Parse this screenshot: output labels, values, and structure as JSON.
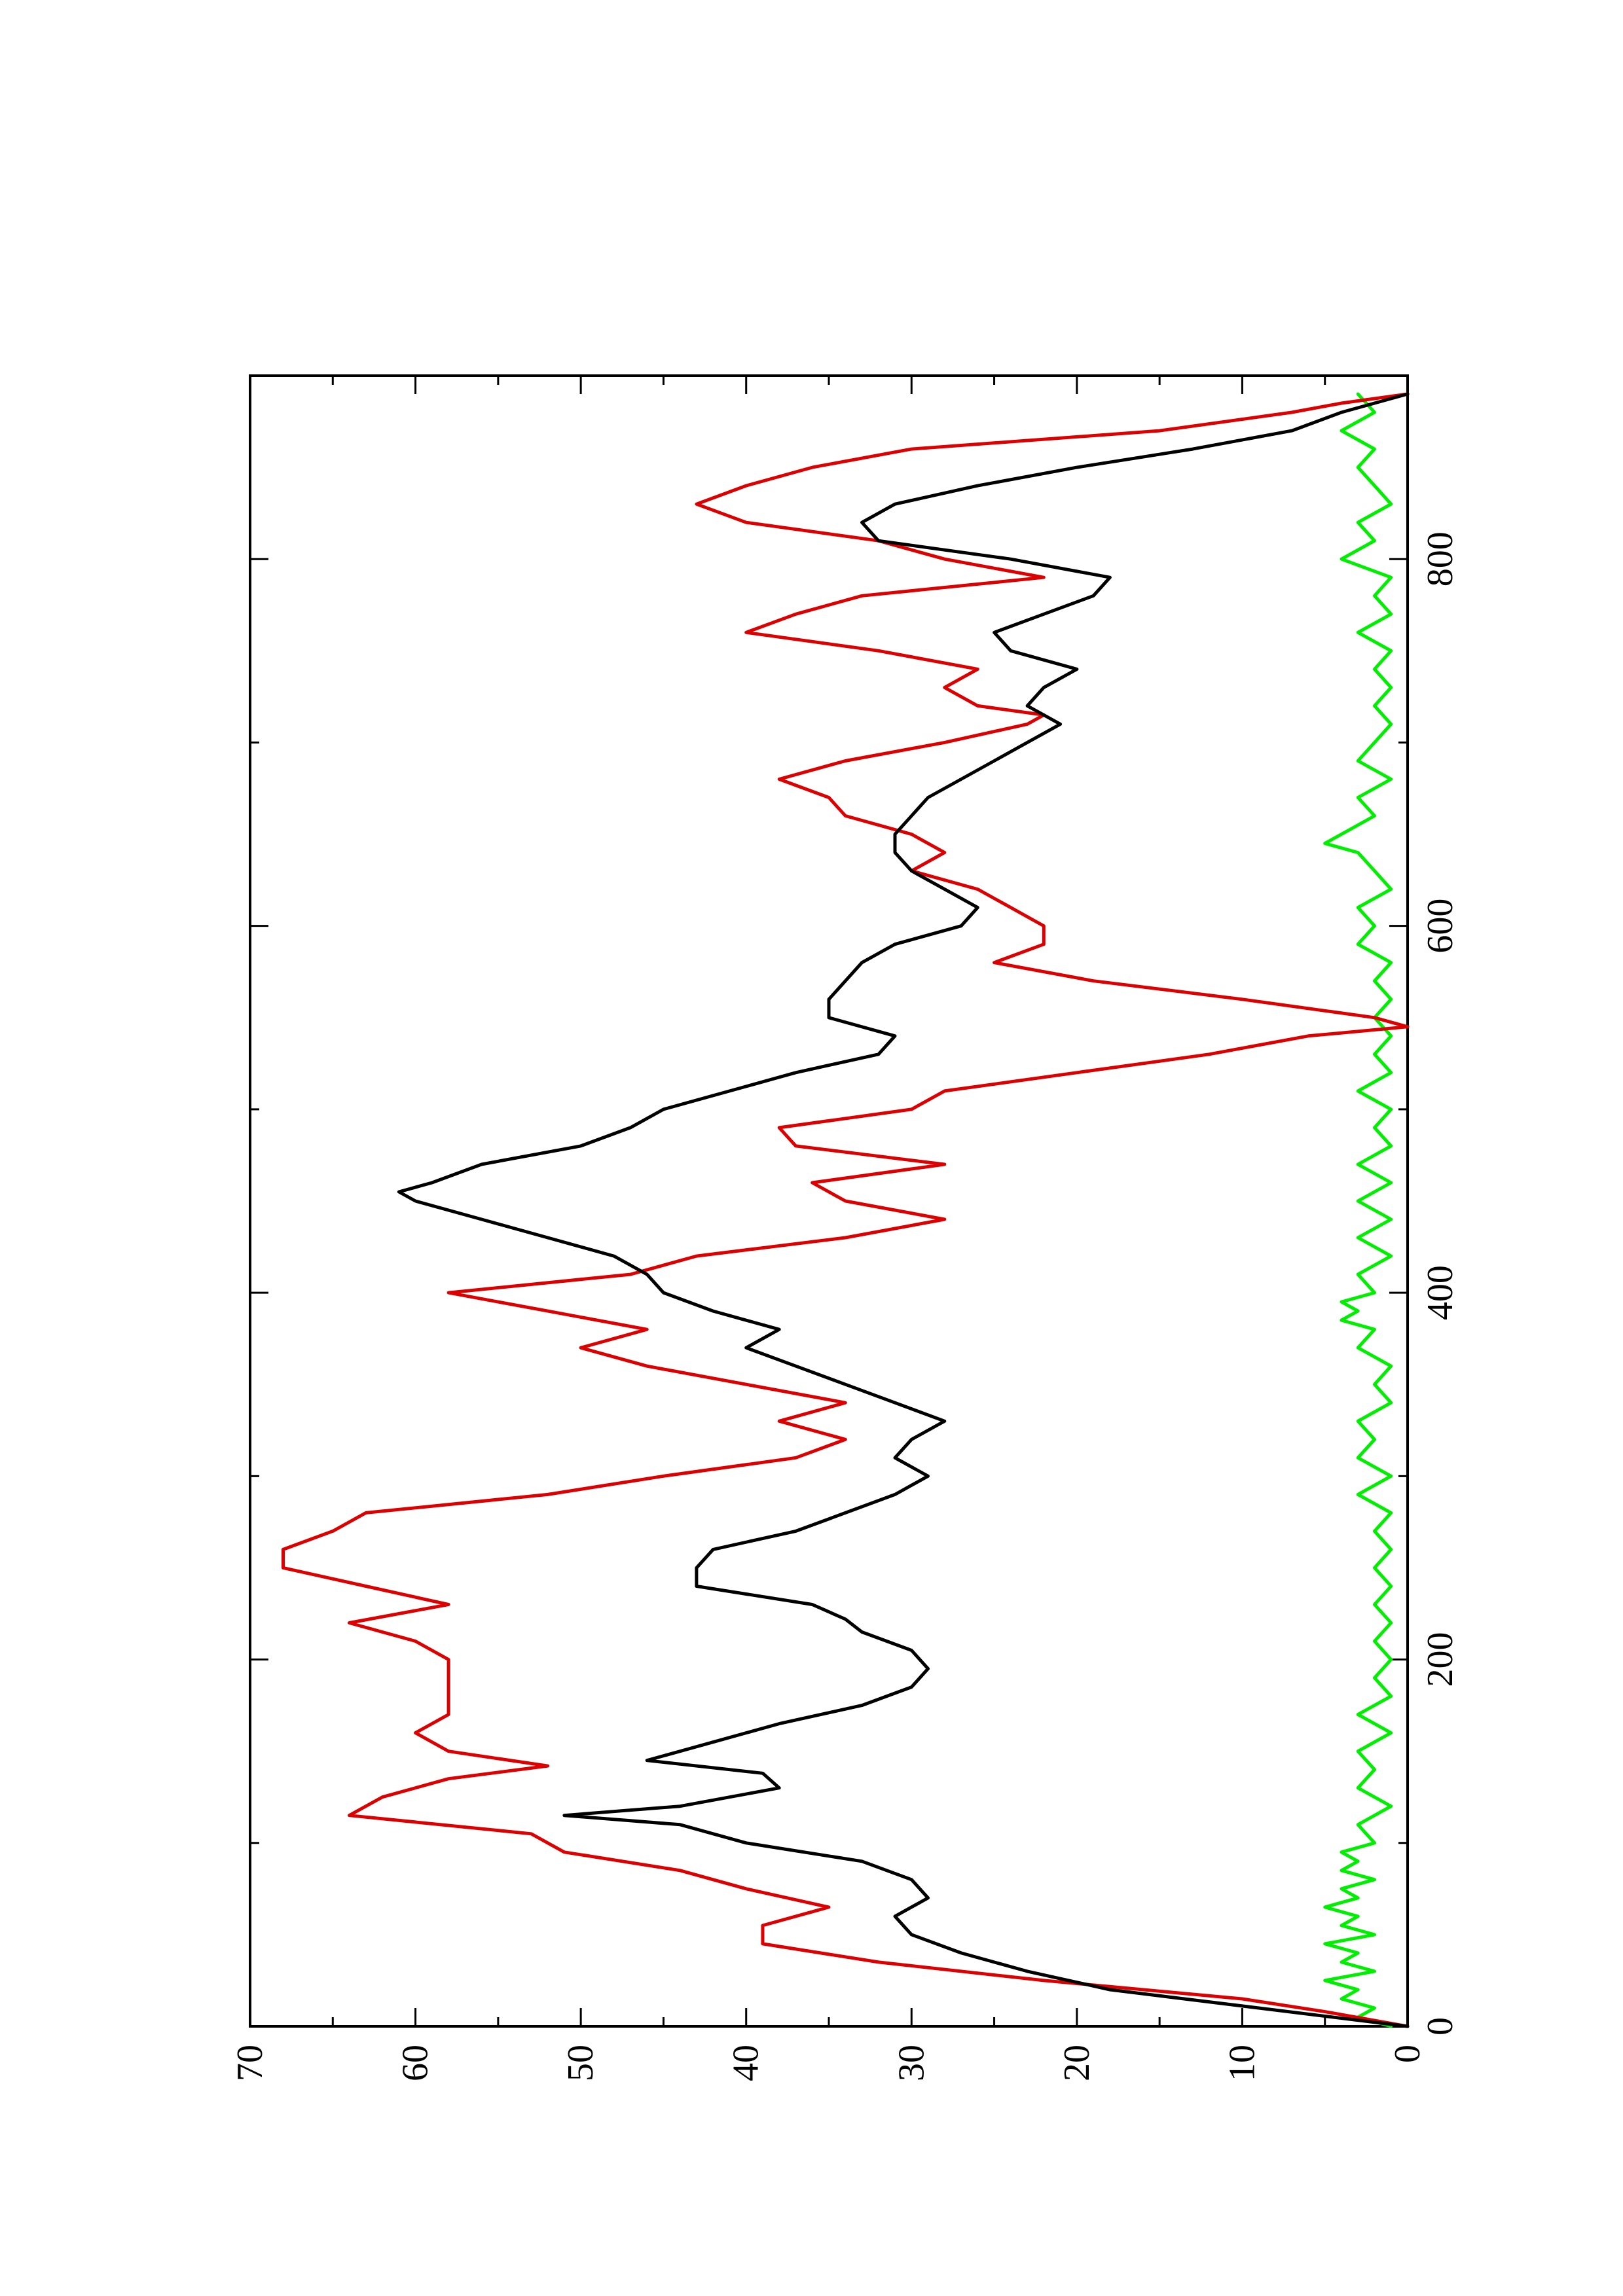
{
  "chart_data": {
    "type": "line",
    "orientation": "rotated-90-ccw",
    "title": "",
    "xlabel": "",
    "ylabel": "",
    "xlim": [
      0,
      900
    ],
    "ylim": [
      0,
      70
    ],
    "grid": false,
    "x_ticks": [
      0,
      200,
      400,
      600,
      800
    ],
    "x_minor_ticks": [
      100,
      300,
      500,
      700
    ],
    "x_tick_labels": [
      "0",
      "200",
      "400",
      "600",
      "800"
    ],
    "y_ticks": [
      0,
      10,
      20,
      30,
      40,
      50,
      60,
      70
    ],
    "y_minor_ticks": [
      5,
      15,
      25,
      35,
      45,
      55,
      65
    ],
    "y_tick_labels": [
      "0",
      "10",
      "20",
      "30",
      "40",
      "50",
      "60",
      "70"
    ],
    "series": [
      {
        "color": "#000000",
        "x": [
          0,
          10,
          20,
          30,
          40,
          50,
          60,
          70,
          80,
          90,
          100,
          110,
          115,
          120,
          130,
          138,
          145,
          155,
          165,
          175,
          185,
          195,
          205,
          215,
          222,
          230,
          240,
          250,
          260,
          270,
          280,
          290,
          300,
          310,
          320,
          330,
          340,
          350,
          360,
          370,
          380,
          390,
          400,
          410,
          420,
          430,
          440,
          450,
          455,
          460,
          470,
          480,
          490,
          500,
          510,
          520,
          530,
          540,
          550,
          560,
          570,
          580,
          590,
          600,
          610,
          620,
          630,
          640,
          650,
          660,
          670,
          680,
          690,
          700,
          710,
          720,
          730,
          740,
          750,
          760,
          770,
          780,
          790,
          800,
          810,
          820,
          830,
          840,
          850,
          860,
          870,
          880,
          885,
          890
        ],
        "values": [
          0,
          9,
          18,
          23,
          27,
          30,
          31,
          29,
          30,
          33,
          40,
          44,
          51,
          44,
          38,
          39,
          46,
          42,
          38,
          33,
          30,
          29,
          30,
          33,
          34,
          36,
          43,
          43,
          42,
          37,
          34,
          31,
          29,
          31,
          30,
          28,
          31,
          34,
          37,
          40,
          38,
          42,
          45,
          46,
          48,
          52,
          56,
          60,
          61,
          59,
          56,
          50,
          47,
          45,
          41,
          37,
          32,
          31,
          35,
          35,
          34,
          33,
          31,
          27,
          26,
          28,
          30,
          31,
          31,
          30,
          29,
          27,
          25,
          23,
          21,
          23,
          22,
          20,
          24,
          25,
          22,
          19,
          18,
          24,
          32,
          33,
          31,
          26,
          20,
          13,
          7,
          4,
          2,
          0
        ]
      },
      {
        "color": "#dd0000",
        "x": [
          0,
          8,
          15,
          25,
          35,
          45,
          55,
          65,
          75,
          85,
          95,
          105,
          115,
          125,
          135,
          142,
          150,
          160,
          170,
          180,
          190,
          200,
          210,
          220,
          230,
          240,
          250,
          260,
          270,
          280,
          290,
          300,
          310,
          320,
          330,
          340,
          350,
          360,
          370,
          380,
          390,
          400,
          410,
          420,
          430,
          440,
          450,
          460,
          470,
          480,
          490,
          500,
          510,
          520,
          530,
          540,
          545,
          550,
          560,
          570,
          580,
          590,
          600,
          610,
          620,
          630,
          640,
          650,
          660,
          670,
          680,
          690,
          700,
          710,
          715,
          720,
          730,
          740,
          750,
          760,
          770,
          780,
          790,
          800,
          810,
          820,
          830,
          840,
          850,
          860,
          870,
          880,
          885,
          890
        ],
        "values": [
          0,
          5,
          10,
          22,
          32,
          39,
          39,
          35,
          40,
          44,
          51,
          53,
          64,
          62,
          58,
          52,
          58,
          60,
          58,
          58,
          58,
          58,
          60,
          64,
          58,
          63,
          68,
          68,
          65,
          63,
          52,
          45,
          37,
          34,
          38,
          34,
          40,
          46,
          50,
          46,
          52,
          58,
          47,
          43,
          34,
          28,
          34,
          36,
          28,
          37,
          38,
          30,
          28,
          20,
          12,
          6,
          0,
          2,
          10,
          19,
          25,
          22,
          22,
          24,
          26,
          30,
          28,
          30,
          34,
          35,
          38,
          34,
          28,
          23,
          22,
          26,
          28,
          26,
          32,
          40,
          37,
          33,
          22,
          28,
          32,
          40,
          43,
          40,
          36,
          30,
          15,
          7,
          4,
          0
        ]
      },
      {
        "color": "#00ee00",
        "x": [
          0,
          5,
          10,
          15,
          20,
          25,
          30,
          35,
          40,
          45,
          50,
          55,
          60,
          65,
          70,
          75,
          80,
          85,
          90,
          95,
          100,
          110,
          120,
          130,
          140,
          150,
          160,
          170,
          180,
          190,
          200,
          210,
          220,
          230,
          240,
          250,
          260,
          270,
          280,
          290,
          300,
          310,
          320,
          330,
          340,
          350,
          360,
          370,
          380,
          385,
          390,
          395,
          400,
          410,
          420,
          430,
          440,
          450,
          460,
          470,
          480,
          490,
          500,
          510,
          520,
          530,
          540,
          550,
          560,
          570,
          580,
          590,
          600,
          610,
          620,
          630,
          640,
          645,
          650,
          660,
          670,
          680,
          690,
          700,
          710,
          720,
          730,
          740,
          750,
          760,
          770,
          780,
          790,
          800,
          810,
          820,
          830,
          840,
          850,
          860,
          870,
          880,
          890
        ],
        "values": [
          1,
          3,
          2,
          4,
          3,
          5,
          2,
          4,
          3,
          5,
          2,
          4,
          3,
          5,
          3,
          4,
          2,
          4,
          3,
          4,
          2,
          3,
          1,
          3,
          2,
          3,
          1,
          3,
          1,
          2,
          1,
          2,
          1,
          2,
          1,
          2,
          1,
          2,
          1,
          3,
          1,
          3,
          2,
          3,
          1,
          2,
          1,
          3,
          2,
          4,
          3,
          4,
          2,
          3,
          1,
          3,
          1,
          3,
          1,
          3,
          1,
          2,
          1,
          3,
          1,
          2,
          1,
          2,
          1,
          2,
          1,
          3,
          2,
          3,
          1,
          2,
          3,
          5,
          4,
          2,
          3,
          1,
          3,
          2,
          1,
          2,
          1,
          2,
          1,
          3,
          1,
          2,
          1,
          4,
          2,
          3,
          1,
          2,
          3,
          2,
          4,
          2,
          3
        ]
      }
    ]
  }
}
